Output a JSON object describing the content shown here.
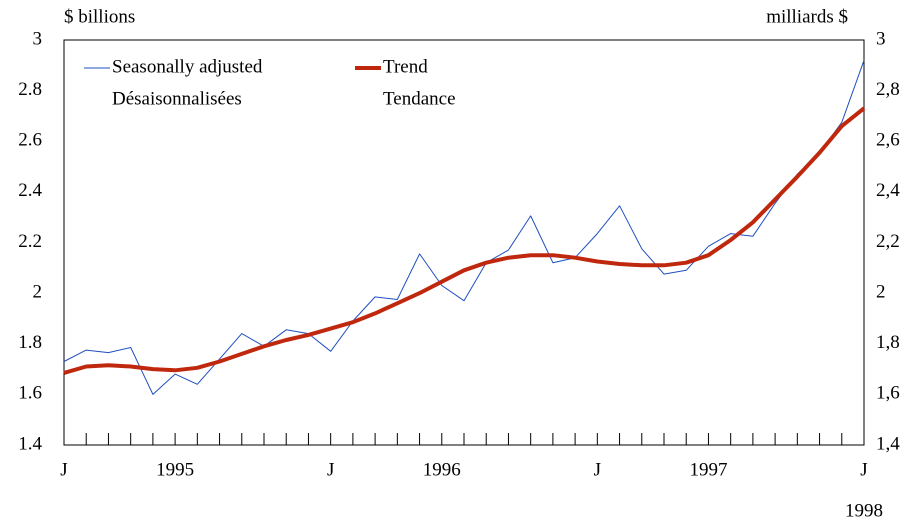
{
  "chart_data": {
    "type": "line",
    "y_label": "$ billions",
    "y2_label": "milliards $",
    "categories": [
      "J",
      null,
      null,
      null,
      null,
      "1995",
      null,
      null,
      null,
      null,
      null,
      null,
      "J",
      null,
      null,
      null,
      null,
      "1996",
      null,
      null,
      null,
      null,
      null,
      null,
      "J",
      null,
      null,
      null,
      null,
      "1997",
      null,
      null,
      null,
      null,
      null,
      null,
      "J"
    ],
    "x_annotation": "1998",
    "series": [
      {
        "name": "Seasonally adjusted",
        "name_fr": "Désaisonnalisées",
        "color": "#1f4fbf",
        "width": 1,
        "values": [
          1.73,
          1.775,
          1.765,
          1.785,
          1.6,
          1.68,
          1.64,
          1.74,
          1.84,
          1.79,
          1.855,
          1.84,
          1.77,
          1.89,
          1.985,
          1.975,
          2.155,
          2.03,
          1.97,
          2.12,
          2.17,
          2.305,
          2.12,
          2.14,
          2.235,
          2.345,
          2.175,
          2.075,
          2.09,
          2.185,
          2.235,
          2.225,
          2.355,
          2.47,
          2.555,
          2.675,
          2.92
        ]
      },
      {
        "name": "Trend",
        "name_fr": "Tendance",
        "color": "#c0280e",
        "width": 4,
        "values": [
          1.685,
          1.71,
          1.715,
          1.71,
          1.7,
          1.695,
          1.705,
          1.73,
          1.76,
          1.79,
          1.815,
          1.835,
          1.86,
          1.885,
          1.92,
          1.96,
          2.0,
          2.045,
          2.09,
          2.12,
          2.14,
          2.15,
          2.15,
          2.14,
          2.125,
          2.115,
          2.11,
          2.11,
          2.12,
          2.15,
          2.21,
          2.28,
          2.37,
          2.46,
          2.555,
          2.66,
          2.73
        ]
      }
    ],
    "ylim": [
      1.4,
      3
    ],
    "yticks": [
      1.4,
      1.6,
      1.8,
      2,
      2.2,
      2.4,
      2.6,
      2.8,
      3
    ],
    "y2lim": [
      1.4,
      3
    ],
    "y2ticks": [
      {
        "value": 1.4,
        "label": "1,4"
      },
      {
        "value": 1.6,
        "label": "1,6"
      },
      {
        "value": 1.8,
        "label": "1,8"
      },
      2,
      {
        "value": 2.2,
        "label": "2,2"
      },
      {
        "value": 2.4,
        "label": "2,4"
      },
      {
        "value": 2.6,
        "label": "2,6"
      },
      {
        "value": 2.8,
        "label": "2,8"
      },
      3
    ],
    "grid": false
  }
}
